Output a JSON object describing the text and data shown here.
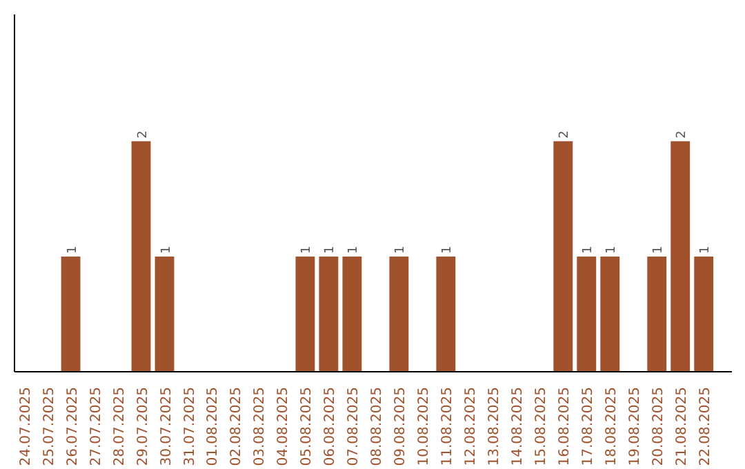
{
  "chart_data": {
    "type": "bar",
    "categories": [
      "24.07.2025",
      "25.07.2025",
      "26.07.2025",
      "27.07.2025",
      "28.07.2025",
      "29.07.2025",
      "30.07.2025",
      "31.07.2025",
      "01.08.2025",
      "02.08.2025",
      "03.08.2025",
      "04.08.2025",
      "05.08.2025",
      "06.08.2025",
      "07.08.2025",
      "08.08.2025",
      "09.08.2025",
      "10.08.2025",
      "11.08.2025",
      "12.08.2025",
      "13.08.2025",
      "14.08.2025",
      "15.08.2025",
      "16.08.2025",
      "17.08.2025",
      "18.08.2025",
      "19.08.2025",
      "20.08.2025",
      "21.08.2025",
      "22.08.2025"
    ],
    "values": [
      0,
      0,
      1,
      0,
      0,
      2,
      1,
      0,
      0,
      0,
      0,
      0,
      1,
      1,
      1,
      0,
      1,
      0,
      1,
      0,
      0,
      0,
      0,
      2,
      1,
      1,
      0,
      1,
      2,
      1
    ],
    "value_labels": [
      null,
      null,
      "1",
      null,
      null,
      "2",
      "1",
      null,
      null,
      null,
      null,
      null,
      "1",
      "1",
      "1",
      null,
      "1",
      null,
      "1",
      null,
      null,
      null,
      null,
      "2",
      "1",
      "1",
      null,
      "1",
      "2",
      "1"
    ],
    "color": "#a0522d",
    "ylim": [
      0,
      3.1
    ],
    "tick_labels": "x"
  }
}
